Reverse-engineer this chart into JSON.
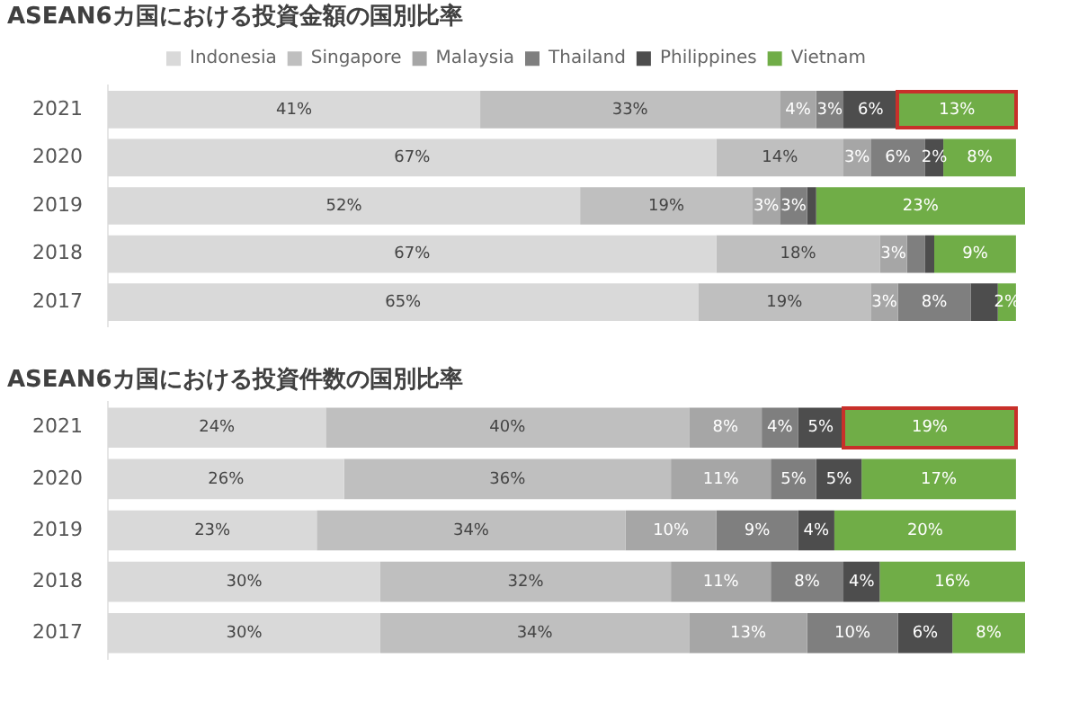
{
  "chart_data": [
    {
      "type": "bar",
      "orientation": "horizontal",
      "stacked": true,
      "title": "ASEAN6カ国における投資金額の国別比率",
      "categories": [
        "2021",
        "2020",
        "2019",
        "2018",
        "2017"
      ],
      "xlim": [
        0,
        101
      ],
      "tick_labels": "y",
      "legend": "top",
      "grid": false,
      "series": [
        {
          "name": "Indonesia",
          "color": "#d9d9d9",
          "values": [
            41,
            67,
            52,
            67,
            65
          ],
          "value_labels": [
            "41%",
            "67%",
            "52%",
            "67%",
            "65%"
          ]
        },
        {
          "name": "Singapore",
          "color": "#bfbfbf",
          "values": [
            33,
            14,
            19,
            18,
            19
          ],
          "value_labels": [
            "33%",
            "14%",
            "19%",
            "18%",
            "19%"
          ]
        },
        {
          "name": "Malaysia",
          "color": "#a6a6a6",
          "values": [
            4,
            3,
            3,
            3,
            3
          ],
          "value_labels": [
            "4%",
            "3%",
            "3%",
            "3%",
            "3%"
          ]
        },
        {
          "name": "Thailand",
          "color": "#7f7f7f",
          "values": [
            3,
            6,
            3,
            2,
            8
          ],
          "value_labels": [
            "3%",
            "6%",
            "3%",
            null,
            "8%"
          ]
        },
        {
          "name": "Philippines",
          "color": "#4d4d4d",
          "values": [
            6,
            2,
            1,
            1,
            3
          ],
          "value_labels": [
            "6%",
            "2%",
            null,
            null,
            null
          ]
        },
        {
          "name": "Vietnam",
          "color": "#70ad47",
          "values": [
            13,
            8,
            23,
            9,
            2
          ],
          "value_labels": [
            "13%",
            "8%",
            "23%",
            "9%",
            "2%"
          ]
        }
      ]
    },
    {
      "type": "bar",
      "orientation": "horizontal",
      "stacked": true,
      "title": "ASEAN6カ国における投資件数の国別比率",
      "categories": [
        "2021",
        "2020",
        "2019",
        "2018",
        "2017"
      ],
      "xlim": [
        0,
        101
      ],
      "tick_labels": "y",
      "legend": false,
      "grid": false,
      "series": [
        {
          "color": "#d9d9d9",
          "values": [
            24,
            26,
            23,
            30,
            30
          ],
          "value_labels": [
            "24%",
            "26%",
            "23%",
            "30%",
            "30%"
          ]
        },
        {
          "color": "#bfbfbf",
          "values": [
            40,
            36,
            34,
            32,
            34
          ],
          "value_labels": [
            "40%",
            "36%",
            "34%",
            "32%",
            "34%"
          ]
        },
        {
          "color": "#a6a6a6",
          "values": [
            8,
            11,
            10,
            11,
            13
          ],
          "value_labels": [
            "8%",
            "11%",
            "10%",
            "11%",
            "13%"
          ]
        },
        {
          "color": "#7f7f7f",
          "values": [
            4,
            5,
            9,
            8,
            10
          ],
          "value_labels": [
            "4%",
            "5%",
            "9%",
            "8%",
            "10%"
          ]
        },
        {
          "color": "#4d4d4d",
          "values": [
            5,
            5,
            4,
            4,
            6
          ],
          "value_labels": [
            "5%",
            "5%",
            "4%",
            "4%",
            "6%"
          ]
        },
        {
          "color": "#70ad47",
          "values": [
            19,
            17,
            20,
            16,
            8
          ],
          "value_labels": [
            "19%",
            "17%",
            "20%",
            "16%",
            "8%"
          ]
        }
      ]
    }
  ]
}
